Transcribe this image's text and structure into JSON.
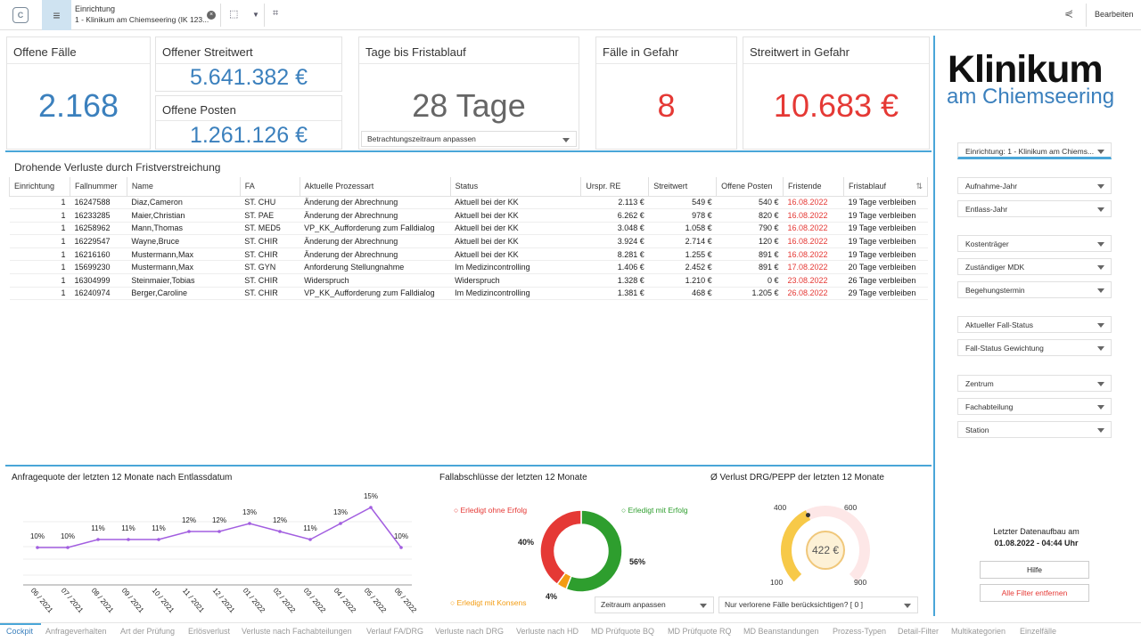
{
  "topbar": {
    "einrichtung_label": "Einrichtung",
    "einrichtung_value": "1 - Klinikum am Chiemseering (IK 123...",
    "edit_label": "Bearbeiten"
  },
  "kpis": {
    "offene_faelle": {
      "title": "Offene Fälle",
      "value": "2.168"
    },
    "offener_streitwert": {
      "title": "Offener Streitwert",
      "value": "5.641.382 €"
    },
    "offene_posten": {
      "title": "Offene Posten",
      "value": "1.261.126 €"
    },
    "tage": {
      "title": "Tage bis Fristablauf",
      "value": "28 Tage",
      "dropdown": "Betrachtungszeitraum anpassen"
    },
    "faelle_gefahr": {
      "title": "Fälle in Gefahr",
      "value": "8"
    },
    "streitwert_gefahr": {
      "title": "Streitwert in Gefahr",
      "value": "10.683 €"
    }
  },
  "table": {
    "title": "Drohende Verluste durch Fristverstreichung",
    "headers": [
      "Einrichtung",
      "Fallnummer",
      "Name",
      "FA",
      "Aktuelle Prozessart",
      "Status",
      "Urspr. RE",
      "Streitwert",
      "Offene Posten",
      "Fristende",
      "Fristablauf"
    ],
    "rows": [
      [
        "1",
        "16247588",
        "Diaz,Cameron",
        "ST. CHU",
        "Änderung der Abrechnung",
        "Aktuell bei der KK",
        "2.113 €",
        "549 €",
        "540 €",
        "16.08.2022",
        "19 Tage verbleiben"
      ],
      [
        "1",
        "16233285",
        "Maier,Christian",
        "ST. PAE",
        "Änderung der Abrechnung",
        "Aktuell bei der KK",
        "6.262 €",
        "978 €",
        "820 €",
        "16.08.2022",
        "19 Tage verbleiben"
      ],
      [
        "1",
        "16258962",
        "Mann,Thomas",
        "ST. MED5",
        "VP_KK_Aufforderung zum Falldialog",
        "Aktuell bei der KK",
        "3.048 €",
        "1.058 €",
        "790 €",
        "16.08.2022",
        "19 Tage verbleiben"
      ],
      [
        "1",
        "16229547",
        "Wayne,Bruce",
        "ST. CHIR",
        "Änderung der Abrechnung",
        "Aktuell bei der KK",
        "3.924 €",
        "2.714 €",
        "120 €",
        "16.08.2022",
        "19 Tage verbleiben"
      ],
      [
        "1",
        "16216160",
        "Mustermann,Max",
        "ST. CHIR",
        "Änderung der Abrechnung",
        "Aktuell bei der KK",
        "8.281 €",
        "1.255 €",
        "891 €",
        "16.08.2022",
        "19 Tage verbleiben"
      ],
      [
        "1",
        "15699230",
        "Mustermann,Max",
        "ST. GYN",
        "Anforderung Stellungnahme",
        "Im Medizincontrolling",
        "1.406 €",
        "2.452 €",
        "891 €",
        "17.08.2022",
        "20 Tage verbleiben"
      ],
      [
        "1",
        "16304999",
        "Steinmaier,Tobias",
        "ST. CHIR",
        "Widerspruch",
        "Widerspruch",
        "1.328 €",
        "1.210 €",
        "0 €",
        "23.08.2022",
        "26 Tage verbleiben"
      ],
      [
        "1",
        "16240974",
        "Berger,Caroline",
        "ST. CHIR",
        "VP_KK_Aufforderung zum Falldialog",
        "Im Medizincontrolling",
        "1.381 €",
        "468 €",
        "1.205 €",
        "26.08.2022",
        "29 Tage verbleiben"
      ]
    ]
  },
  "line_chart": {
    "title": "Anfragequote der letzten 12 Monate nach Entlassdatum"
  },
  "donut": {
    "title": "Fallabschlüsse der letzten 12 Monate",
    "legend_ohne": "Erledigt ohne Erfolg",
    "legend_mit": "Erledigt mit Erfolg",
    "legend_konsens": "Erledigt mit Konsens",
    "dropdown": "Zeitraum anpassen"
  },
  "gauge": {
    "title": "Ø Verlust DRG/PEPP der letzten 12 Monate",
    "value_label": "422 €",
    "ticks": [
      "100",
      "400",
      "600",
      "900"
    ],
    "dropdown": "Nur verlorene Fälle berücksichtigen? [ 0 ]"
  },
  "chart_data": [
    {
      "type": "line",
      "categories": [
        "06 / 2021",
        "07 / 2021",
        "08 / 2021",
        "09 / 2021",
        "10 / 2021",
        "11 / 2021",
        "12 / 2021",
        "01 / 2022",
        "02 / 2022",
        "03 / 2022",
        "04 / 2022",
        "05 / 2022",
        "06 / 2022"
      ],
      "values": [
        10,
        10,
        11,
        11,
        11,
        12,
        12,
        13,
        12,
        11,
        13,
        15,
        10
      ],
      "labels": [
        "10%",
        "10%",
        "11%",
        "11%",
        "11%",
        "12%",
        "12%",
        "13%",
        "12%",
        "11%",
        "13%",
        "15%",
        "10%"
      ],
      "color": "#a25ee0"
    },
    {
      "type": "pie",
      "categories": [
        "Erledigt mit Erfolg",
        "Erledigt ohne Erfolg",
        "Erledigt mit Konsens"
      ],
      "values": [
        56,
        40,
        4
      ],
      "labels": [
        "56%",
        "40%",
        "4%"
      ],
      "colors": [
        "#2e9e2e",
        "#e53935",
        "#f39c12"
      ]
    },
    {
      "type": "gauge",
      "value": 422,
      "min": 100,
      "max": 900,
      "colors": [
        "#f7c948",
        "#fde7e7"
      ]
    }
  ],
  "sidebar": {
    "logo_line1": "Klinikum",
    "logo_line2": "am Chiemseering",
    "filters": [
      "Einrichtung: 1 - Klinikum am Chiems...",
      "Aufnahme-Jahr",
      "Entlass-Jahr",
      "Kostenträger",
      "Zuständiger MDK",
      "Begehungstermin",
      "Aktueller Fall-Status",
      "Fall-Status Gewichtung",
      "Zentrum",
      "Fachabteilung",
      "Station"
    ],
    "update_label": "Letzter Datenaufbau am",
    "update_value": "01.08.2022 - 04:44 Uhr",
    "help_button": "Hilfe",
    "clear_button": "Alle Filter entfernen"
  },
  "tabs": [
    "Cockpit",
    "Anfrageverhalten",
    "Art der Prüfung",
    "Erlösverlust",
    "Verluste nach Fachabteilungen",
    "Verlauf FA/DRG",
    "Verluste nach DRG",
    "Verluste nach HD",
    "MD Prüfquote BQ",
    "MD Prüfquote RQ",
    "MD Beanstandungen",
    "Prozess-Typen",
    "Detail-Filter",
    "Multikategorien",
    "Einzelfälle"
  ]
}
